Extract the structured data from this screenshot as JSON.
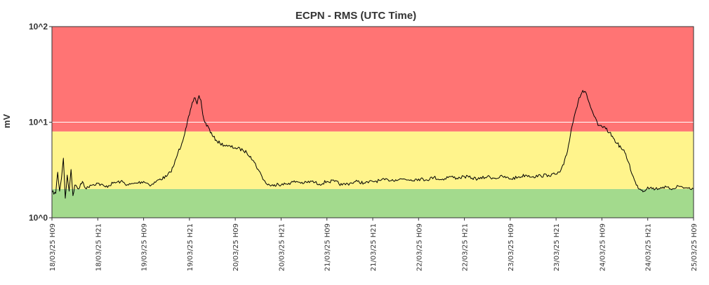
{
  "chart_data": {
    "type": "line",
    "title": "ECPN - RMS (UTC Time)",
    "ylabel": "mV",
    "y_scale": "log",
    "ylim": [
      1,
      100
    ],
    "y_ticks": [
      {
        "value": 1,
        "label": "10^0"
      },
      {
        "value": 10,
        "label": "10^1"
      },
      {
        "value": 100,
        "label": "10^2"
      }
    ],
    "x_ticks": [
      "18/03/25 H09",
      "18/03/25 H21",
      "19/03/25 H09",
      "19/03/25 H21",
      "20/03/25 H09",
      "20/03/25 H21",
      "21/03/25 H09",
      "21/03/25 H21",
      "22/03/25 H09",
      "22/03/25 H21",
      "23/03/25 H09",
      "23/03/25 H21",
      "24/03/25 H09",
      "24/03/25 H21",
      "25/03/25 H09"
    ],
    "x_unit": "hours since 18/03/25 H09",
    "xlim": [
      0,
      168
    ],
    "threshold_bands": [
      {
        "from": 1,
        "to": 2,
        "color": "#a3da8d"
      },
      {
        "from": 2,
        "to": 8,
        "color": "#fff48c"
      },
      {
        "from": 8,
        "to": 100,
        "color": "#ff7474"
      }
    ],
    "reference_lines": [
      {
        "value": 10,
        "color": "#ffffff"
      }
    ],
    "grid": false,
    "line_color": "#000000",
    "series": [
      {
        "x": [
          0,
          1,
          1.5,
          2,
          2.5,
          3,
          3.5,
          4,
          4.5,
          5,
          5.5,
          6,
          7,
          8,
          9,
          10,
          12,
          14,
          16,
          18,
          20,
          22,
          24,
          26,
          28,
          30,
          31,
          32,
          33,
          34,
          35,
          36,
          36.5,
          37,
          37.5,
          38,
          38.5,
          39,
          39.5,
          40,
          41,
          42,
          43,
          44,
          46,
          48,
          50,
          51,
          52,
          53,
          54,
          55,
          56,
          57,
          58,
          59,
          60,
          62,
          64,
          66,
          68,
          70,
          72,
          74,
          76,
          78,
          80,
          82,
          84,
          86,
          88,
          90,
          92,
          94,
          96,
          98,
          100,
          102,
          104,
          106,
          108,
          110,
          112,
          114,
          116,
          118,
          120,
          122,
          124,
          126,
          128,
          130,
          132,
          133,
          134,
          135,
          136,
          137,
          138,
          139,
          140,
          141,
          142,
          143,
          144,
          145,
          146,
          147,
          148,
          149,
          150,
          151,
          152,
          153,
          154,
          155,
          156,
          158,
          160,
          162,
          164,
          166,
          168
        ],
        "y": [
          1.85,
          1.8,
          3.0,
          1.9,
          2.6,
          4.2,
          1.6,
          2.8,
          1.9,
          3.2,
          1.7,
          2.2,
          2.0,
          2.4,
          2.0,
          2.2,
          2.3,
          2.1,
          2.3,
          2.4,
          2.2,
          2.3,
          2.4,
          2.2,
          2.5,
          2.7,
          3.0,
          3.6,
          4.8,
          6.0,
          8.5,
          12.0,
          14.5,
          16.5,
          18.0,
          15.5,
          19.0,
          17.0,
          12.0,
          10.0,
          8.8,
          7.2,
          6.5,
          6.0,
          5.6,
          5.4,
          5.1,
          4.8,
          4.4,
          3.8,
          3.2,
          2.7,
          2.3,
          2.2,
          2.15,
          2.3,
          2.2,
          2.3,
          2.4,
          2.3,
          2.4,
          2.25,
          2.4,
          2.4,
          2.2,
          2.3,
          2.4,
          2.3,
          2.4,
          2.45,
          2.5,
          2.5,
          2.55,
          2.5,
          2.55,
          2.5,
          2.65,
          2.5,
          2.7,
          2.6,
          2.7,
          2.6,
          2.55,
          2.7,
          2.6,
          2.7,
          2.55,
          2.65,
          2.8,
          2.7,
          2.75,
          2.8,
          2.85,
          3.0,
          3.6,
          5.0,
          8.5,
          12.5,
          18.0,
          21.5,
          19.5,
          14.5,
          11.5,
          9.2,
          9.0,
          8.5,
          7.8,
          6.8,
          6.0,
          5.4,
          4.8,
          3.8,
          2.8,
          2.2,
          2.0,
          1.9,
          2.1,
          2.0,
          2.1,
          2.0,
          2.15,
          2.05,
          2.0
        ]
      }
    ]
  }
}
